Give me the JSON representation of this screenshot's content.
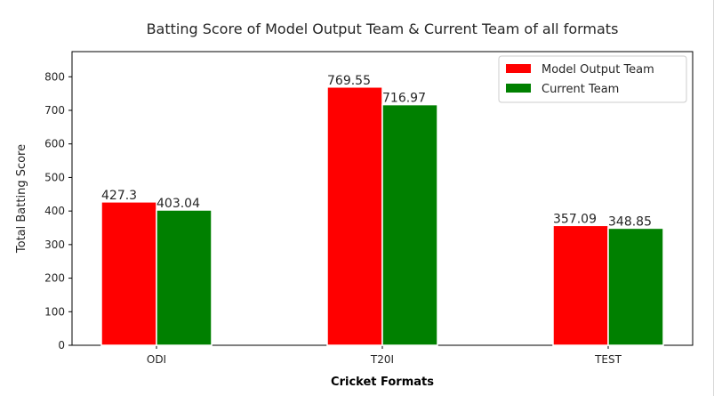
{
  "chart_data": {
    "type": "bar",
    "title": "Batting Score of Model Output Team & Current Team of all formats",
    "xlabel": "Cricket Formats",
    "ylabel": "Total Batting Score",
    "categories": [
      "ODI",
      "T20I",
      "TEST"
    ],
    "series": [
      {
        "name": "Model Output Team",
        "values": [
          427.3,
          769.55,
          357.09
        ],
        "labels": [
          "427.3",
          "769.55",
          "357.09"
        ],
        "color": "#ff0000"
      },
      {
        "name": "Current Team",
        "values": [
          403.04,
          716.97,
          348.85
        ],
        "labels": [
          "403.04",
          "716.97",
          "348.85"
        ],
        "color": "#008000"
      }
    ],
    "ylim": [
      0,
      875
    ],
    "yticks": [
      "0",
      "100",
      "200",
      "300",
      "400",
      "500",
      "600",
      "700",
      "800"
    ],
    "grid": false,
    "legend_position": "top-right"
  }
}
